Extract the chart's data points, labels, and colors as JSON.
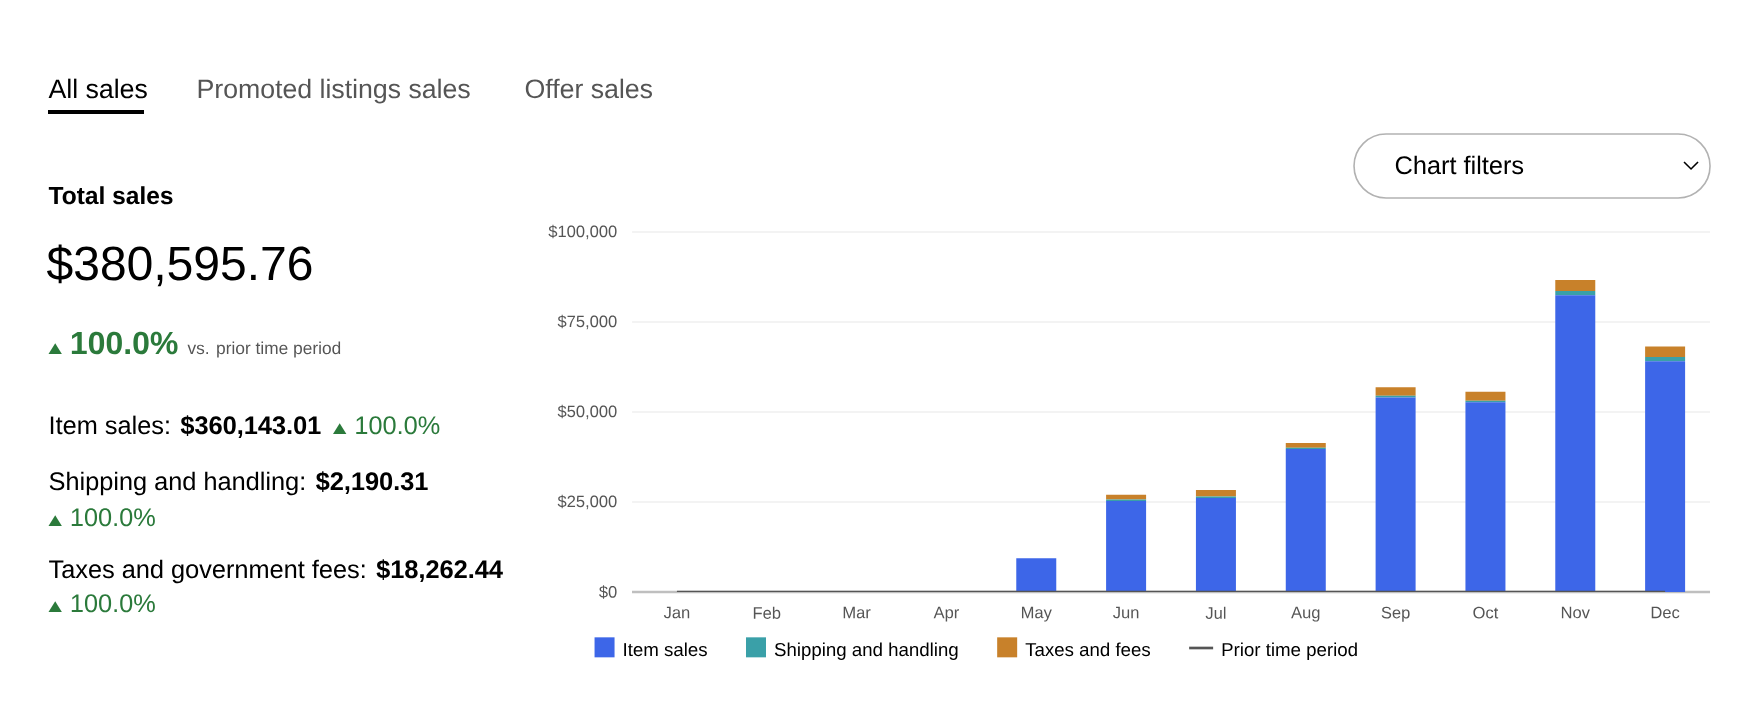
{
  "chart_data": [
    {
      "type": "other",
      "annotations": [
        "All sales",
        "Promoted listings sales",
        "Offer sales",
        "**Total sales**",
        "$380,595.76",
        "**100.0%**",
        "vs. prior time period",
        "Item sales: **$360,143.01**",
        "100.0%",
        "Shipping and handling: **$2,190.31**",
        "100.0%",
        "Taxes and government fees: **$18,262.44**",
        "100.0%",
        "Chart filters"
      ]
    },
    {
      "type": "bar",
      "stacked": true,
      "grid": "y",
      "legend": "bottom",
      "categories": [
        "Jan",
        "Feb",
        "Mar",
        "Apr",
        "May",
        "Jun",
        "Jul",
        "Aug",
        "Sep",
        "Oct",
        "Nov",
        "Dec"
      ],
      "ylim": [
        0,
        100000
      ],
      "yticks": [
        {
          "value": 0,
          "label": "$0"
        },
        {
          "value": 25000,
          "label": "$25,000"
        },
        {
          "value": 50000,
          "label": "$50,000"
        },
        {
          "value": 75000,
          "label": "$75,000"
        },
        {
          "value": 100000,
          "label": "$100,000"
        }
      ],
      "series": [
        {
          "name": "Item sales",
          "color": "#3d66e8",
          "values": [
            0,
            0,
            0,
            0,
            9400,
            25300,
            26100,
            39700,
            54000,
            52700,
            82400,
            64100
          ]
        },
        {
          "name": "Shipping and handling",
          "color": "#3aa0a8",
          "values": [
            0,
            0,
            0,
            0,
            0,
            400,
            400,
            400,
            500,
            400,
            1200,
            1200
          ]
        },
        {
          "name": "Taxes and fees",
          "color": "#c8812a",
          "values": [
            0,
            0,
            0,
            0,
            0,
            1300,
            1800,
            1300,
            2400,
            2500,
            3100,
            2900
          ]
        },
        {
          "name": "Prior time period",
          "type": "line",
          "color": "#555555",
          "values": [
            0,
            0,
            0,
            0,
            0,
            0,
            0,
            0,
            0,
            0,
            0,
            0
          ]
        }
      ]
    }
  ]
}
